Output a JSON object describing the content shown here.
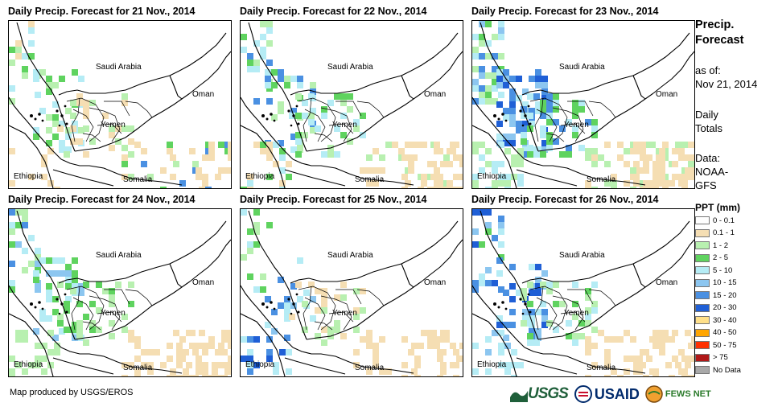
{
  "panels": [
    {
      "title": "Daily Precip. Forecast for 21 Nov., 2014"
    },
    {
      "title": "Daily Precip. Forecast for 22 Nov., 2014"
    },
    {
      "title": "Daily Precip. Forecast for 23 Nov., 2014"
    },
    {
      "title": "Daily Precip. Forecast for 24 Nov., 2014"
    },
    {
      "title": "Daily Precip. Forecast for 25 Nov., 2014"
    },
    {
      "title": "Daily Precip. Forecast for 26 Nov., 2014"
    }
  ],
  "map_labels": {
    "saudi": "Saudi Arabia",
    "oman": "Oman",
    "yemen": "Yemen",
    "ethiopia": "Ethiopia",
    "somalia": "Somalia"
  },
  "sidebar": {
    "title_line1": "Precip.",
    "title_line2": "Forecast",
    "asof_line1": "as of:",
    "asof_line2": "Nov 21, 2014",
    "daily_line1": "Daily",
    "daily_line2": "Totals",
    "data_line1": "Data:",
    "data_line2": "NOAA-",
    "data_line3": "GFS"
  },
  "legend": {
    "title": "PPT (mm)",
    "items": [
      {
        "label": "0 - 0.1",
        "color": "#ffffff"
      },
      {
        "label": "0.1 - 1",
        "color": "#f5deb3"
      },
      {
        "label": "1 - 2",
        "color": "#b8f0b0"
      },
      {
        "label": "2 - 5",
        "color": "#5fd35f"
      },
      {
        "label": "5 - 10",
        "color": "#b5ecf5"
      },
      {
        "label": "10 - 15",
        "color": "#8cc6f0"
      },
      {
        "label": "15 - 20",
        "color": "#4a90e2"
      },
      {
        "label": "20 - 30",
        "color": "#1f5fd6"
      },
      {
        "label": "30 - 40",
        "color": "#ffe08a"
      },
      {
        "label": "40 - 50",
        "color": "#ffa500"
      },
      {
        "label": "50 - 75",
        "color": "#ff3000"
      },
      {
        "label": "> 75",
        "color": "#b01818"
      },
      {
        "label": "No Data",
        "color": "#a9a9a9"
      }
    ]
  },
  "credit": "Map produced by USGS/EROS",
  "logos": {
    "usgs": "USGS",
    "usaid": "USAID",
    "fews": "FEWS NET"
  }
}
